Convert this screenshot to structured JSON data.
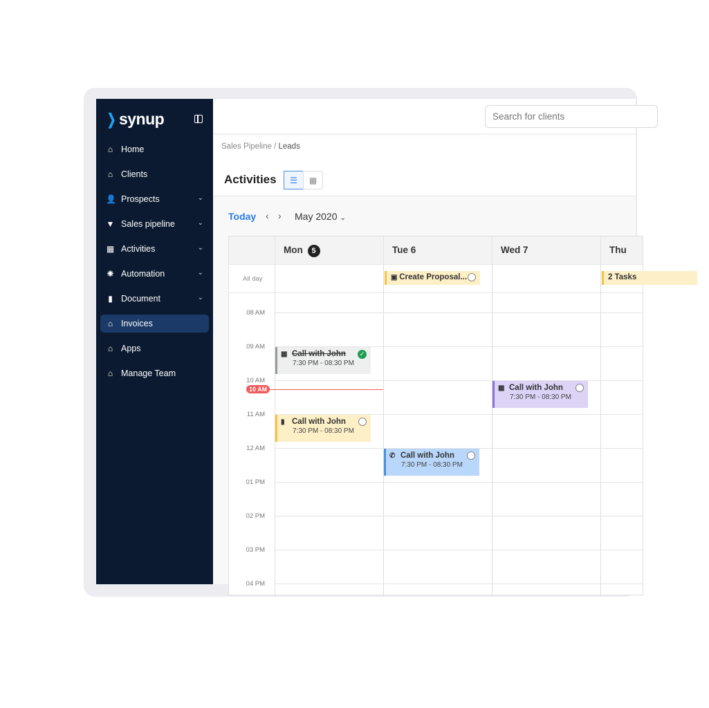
{
  "sidebar": {
    "logo": "synup",
    "items": [
      {
        "label": "Home",
        "icon": "home-icon"
      },
      {
        "label": "Clients",
        "icon": "home-icon"
      },
      {
        "label": "Prospects",
        "icon": "user-icon",
        "chevron": true
      },
      {
        "label": "Sales pipeline",
        "icon": "funnel-icon",
        "chevron": true
      },
      {
        "label": "Activities",
        "icon": "calendar-icon",
        "chevron": true
      },
      {
        "label": "Automation",
        "icon": "gear-icon",
        "chevron": true
      },
      {
        "label": "Document",
        "icon": "document-icon",
        "chevron": true
      },
      {
        "label": "Invoices",
        "icon": "home-icon",
        "active": true
      },
      {
        "label": "Apps",
        "icon": "home-icon"
      },
      {
        "label": "Manage Team",
        "icon": "home-icon"
      }
    ]
  },
  "header": {
    "search_placeholder": "Search for clients"
  },
  "breadcrumb": {
    "parent": "Sales Pipeline",
    "sep": " / ",
    "current": "Leads"
  },
  "page": {
    "title": "Activities"
  },
  "calendar": {
    "today": "Today",
    "month": "May 2020",
    "days": [
      {
        "name": "Mon",
        "num": "5",
        "today": true
      },
      {
        "name": "Tue 6"
      },
      {
        "name": "Wed 7"
      },
      {
        "name": "Thu"
      }
    ],
    "all_day_label": "All day",
    "all_day_tasks": [
      {
        "label": "Create Proposal...",
        "day": 1
      },
      {
        "label": "2 Tasks",
        "day": 3
      }
    ],
    "hours": [
      "08 AM",
      "09 AM",
      "10 AM",
      "11 AM",
      "12 AM",
      "01 PM",
      "02 PM",
      "03 PM",
      "04 PM"
    ],
    "now_label": "10 AM",
    "events": [
      {
        "title": "Call with John",
        "time": "7:30 PM - 08:30 PM",
        "day": 0,
        "start": "09 AM",
        "done": true,
        "color": "#eef0f0",
        "border": "#999999"
      },
      {
        "title": "Call with John",
        "time": "7:30 PM - 08:30 PM",
        "day": 0,
        "start": "11 AM",
        "done": false,
        "color": "#fdefc6",
        "border": "#f5c342"
      },
      {
        "title": "Call with John",
        "time": "7:30 PM - 08:30 PM",
        "day": 1,
        "start": "12 AM",
        "done": false,
        "color": "#b9d7fb",
        "border": "#4a90e2"
      },
      {
        "title": "Call with John",
        "time": "7:30 PM - 08:30 PM",
        "day": 2,
        "start": "10 AM",
        "done": false,
        "color": "#dcd3f7",
        "border": "#8a72de"
      }
    ]
  }
}
